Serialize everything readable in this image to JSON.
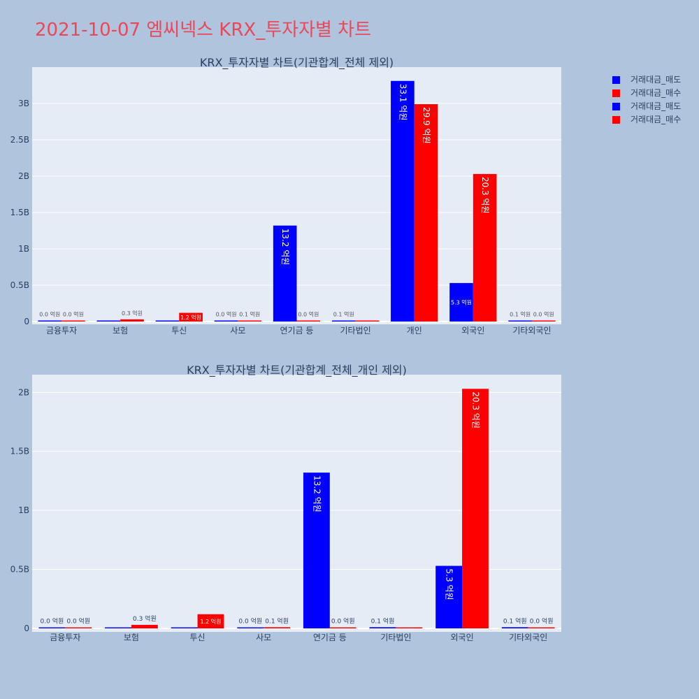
{
  "page_title": "2021-10-07 엠씨넥스 KRX_투자자별 차트",
  "legend": [
    {
      "label": "거래대금_매도",
      "color": "#0000ff"
    },
    {
      "label": "거래대금_매수",
      "color": "#ff0000"
    },
    {
      "label": "거래대금_매도",
      "color": "#0000ff"
    },
    {
      "label": "거래대금_매수",
      "color": "#ff0000"
    }
  ],
  "chart_data": [
    {
      "type": "bar",
      "title": "KRX_투자자별 차트(기관합계_전체 제외)",
      "categories": [
        "금융투자",
        "보험",
        "투신",
        "사모",
        "연기금 등",
        "기타법인",
        "개인",
        "외국인",
        "기타외국인"
      ],
      "yticks": [
        0,
        0.5,
        1,
        1.5,
        2,
        2.5,
        3
      ],
      "ytick_labels": [
        "0",
        "0.5B",
        "1B",
        "1.5B",
        "2B",
        "2.5B",
        "3B"
      ],
      "ylim": [
        0,
        3.5
      ],
      "series": [
        {
          "name": "거래대금_매도",
          "color": "#0000ff",
          "values": [
            0.0,
            0.0,
            0.0,
            0.0,
            1.32,
            0.01,
            3.31,
            0.53,
            0.01
          ],
          "labels": [
            "0.0 억원",
            "",
            "",
            "0.0 억원",
            "13.2 억원",
            "0.1 억원",
            "33.1 억원",
            "5.3 억원",
            "0.1 억원"
          ]
        },
        {
          "name": "거래대금_매수",
          "color": "#ff0000",
          "values": [
            0.0,
            0.03,
            0.12,
            0.01,
            0.0,
            0.0,
            2.99,
            2.03,
            0.0
          ],
          "labels": [
            "0.0 억원",
            "0.3 억원",
            "1.2 억원",
            "0.1 억원",
            "0.0 억원",
            "",
            "29.9 억원",
            "20.3 억원",
            "0.0 억원"
          ]
        }
      ]
    },
    {
      "type": "bar",
      "title": "KRX_투자자별 차트(기관합계_전체_개인 제외)",
      "categories": [
        "금융투자",
        "보험",
        "투신",
        "사모",
        "연기금 등",
        "기타법인",
        "외국인",
        "기타외국인"
      ],
      "yticks": [
        0,
        0.5,
        1,
        1.5,
        2
      ],
      "ytick_labels": [
        "0",
        "0.5B",
        "1B",
        "1.5B",
        "2B"
      ],
      "ylim": [
        0,
        2.15
      ],
      "series": [
        {
          "name": "거래대금_매도",
          "color": "#0000ff",
          "values": [
            0.0,
            0.0,
            0.0,
            0.0,
            1.32,
            0.01,
            0.53,
            0.01
          ],
          "labels": [
            "0.0 억원",
            "",
            "",
            "0.0 억원",
            "13.2 억원",
            "0.1 억원",
            "5.3 억원",
            "0.1 억원"
          ]
        },
        {
          "name": "거래대금_매수",
          "color": "#ff0000",
          "values": [
            0.0,
            0.03,
            0.12,
            0.01,
            0.0,
            0.0,
            2.03,
            0.0
          ],
          "labels": [
            "0.0 억원",
            "0.3 억원",
            "1.2 억원",
            "0.1 억원",
            "0.0 억원",
            "",
            "20.3 억원",
            "0.0 억원"
          ]
        }
      ]
    }
  ]
}
